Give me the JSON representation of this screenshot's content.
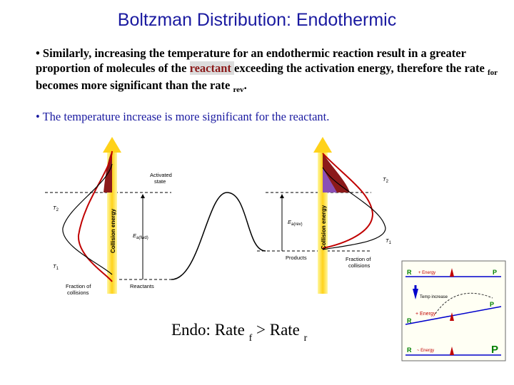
{
  "title": "Boltzman Distribution: Endothermic",
  "paragraph1": {
    "part1": "• Similarly, increasing the temperature for an endothermic reaction result in a greater proportion of molecules of the ",
    "highlight": "reactant ",
    "part2": " exceeding the activation energy, therefore the rate ",
    "sub1": "for",
    "part3": " becomes more significant than the rate ",
    "sub2": "rev",
    "part4": "."
  },
  "paragraph2": "• The temperature increase is more significant for the reactant.",
  "diagram": {
    "left_axis_label": "Collision energy",
    "right_axis_label": "Collision energy",
    "activated_state_line1": "Activated",
    "activated_state_line2": "state",
    "t2_left": "T",
    "t2_left_sub": "2",
    "t1_left": "T",
    "t1_left_sub": "1",
    "ea_fwd": "E",
    "ea_fwd_sub": "a(fwd)",
    "ea_rev": "E",
    "ea_rev_sub": "a(rev)",
    "fraction_left_line1": "Fraction of",
    "fraction_left_line2": "collisions",
    "reactants": "Reactants",
    "products": "Products",
    "fraction_right_line1": "Fraction of",
    "fraction_right_line2": "collisions",
    "t2_right": "T",
    "t2_right_sub": "2",
    "t1_right": "T",
    "t1_right_sub": "1"
  },
  "caption": {
    "text1": "Endo: Rate ",
    "sub1": "f",
    "text2": " > Rate ",
    "sub2": "r"
  },
  "inset": {
    "top_r": "R",
    "top_energy": "+ Energy",
    "top_p": "P",
    "temp_label": "Temp increase",
    "mid_p": "P",
    "mid_energy": "+ Energy",
    "mid_r": "R",
    "bottom_r": "R",
    "bottom_energy": "~ Energy",
    "bottom_p": "P"
  }
}
